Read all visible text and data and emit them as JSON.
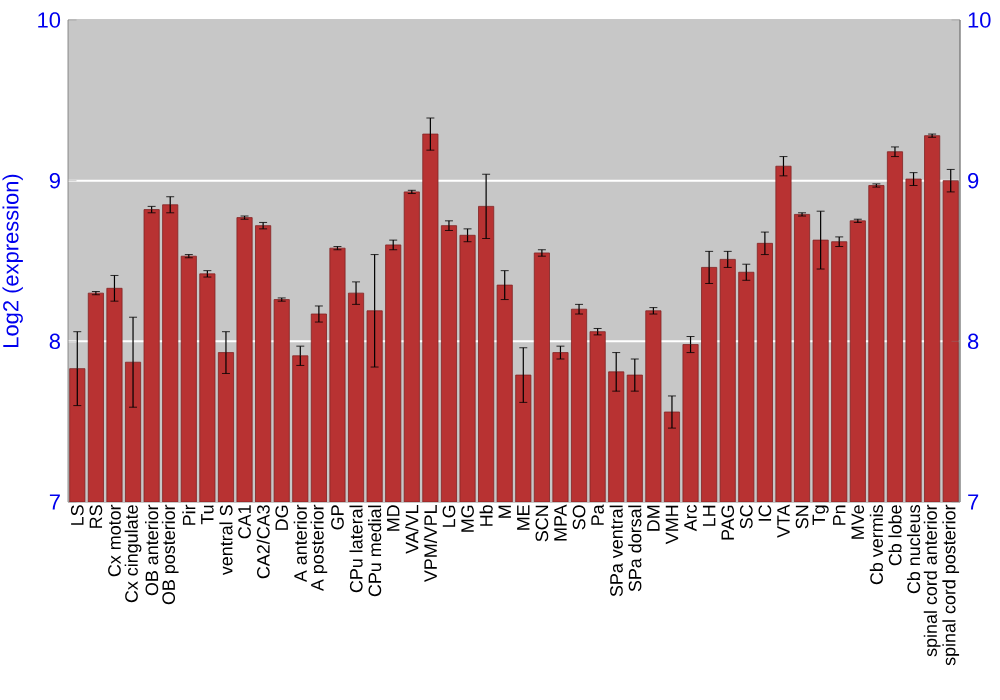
{
  "chart_data": {
    "type": "bar",
    "ylabel": "Log2 (expression)",
    "categories": [
      "LS",
      "RS",
      "Cx motor",
      "Cx cingulate",
      "OB anterior",
      "OB posterior",
      "Pir",
      "Tu",
      "ventral S",
      "CA1",
      "CA2/CA3",
      "DG",
      "A anterior",
      "A posterior",
      "GP",
      "CPu lateral",
      "CPu medial",
      "MD",
      "VA/VL",
      "VPM/VPL",
      "LG",
      "MG",
      "Hb",
      "M",
      "ME",
      "SCN",
      "MPA",
      "SO",
      "Pa",
      "SPa ventral",
      "SPa dorsal",
      "DM",
      "VMH",
      "Arc",
      "LH",
      "PAG",
      "SC",
      "IC",
      "VTA",
      "SN",
      "Tg",
      "Pn",
      "MVe",
      "Cb vermis",
      "Cb lobe",
      "Cb nucleus",
      "spinal cord anterior",
      "spinal cord posterior"
    ],
    "values": [
      7.83,
      8.3,
      8.33,
      7.87,
      8.82,
      8.85,
      8.53,
      8.42,
      7.93,
      8.77,
      8.72,
      8.26,
      7.91,
      8.17,
      8.58,
      8.3,
      8.19,
      8.6,
      8.93,
      9.29,
      8.72,
      8.66,
      8.84,
      8.35,
      7.79,
      8.55,
      7.93,
      8.2,
      8.06,
      7.81,
      7.79,
      8.19,
      7.56,
      7.98,
      8.46,
      8.51,
      8.43,
      8.61,
      9.09,
      8.79,
      8.63,
      8.62,
      8.75,
      8.97,
      9.18,
      9.01,
      9.28,
      9.0
    ],
    "errors": [
      0.23,
      0.01,
      0.08,
      0.28,
      0.02,
      0.05,
      0.01,
      0.02,
      0.13,
      0.01,
      0.02,
      0.01,
      0.06,
      0.05,
      0.01,
      0.07,
      0.35,
      0.03,
      0.01,
      0.1,
      0.03,
      0.04,
      0.2,
      0.09,
      0.17,
      0.02,
      0.04,
      0.03,
      0.02,
      0.12,
      0.1,
      0.02,
      0.1,
      0.05,
      0.1,
      0.05,
      0.05,
      0.07,
      0.06,
      0.01,
      0.18,
      0.03,
      0.01,
      0.01,
      0.03,
      0.04,
      0.01,
      0.07
    ],
    "color": "#b83232",
    "ylim": [
      7,
      10
    ],
    "yticks": [
      7,
      8,
      9,
      10
    ],
    "y2lim": [
      7,
      10
    ],
    "y2ticks": [
      7,
      8,
      9,
      10
    ],
    "grid": "y"
  }
}
